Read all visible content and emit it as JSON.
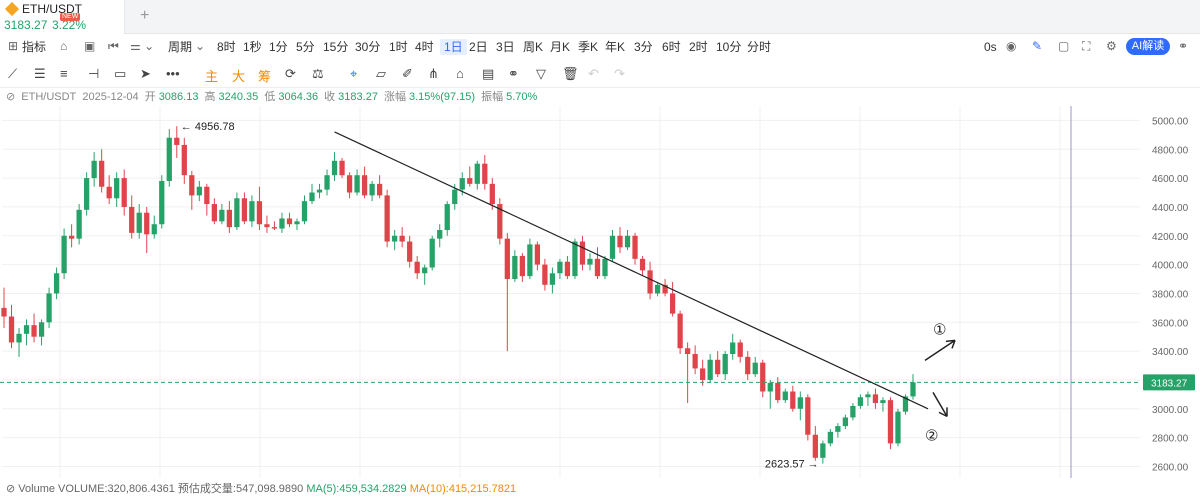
{
  "tab": {
    "symbol": "ETH/USDT",
    "price": "3183.27",
    "change": "3.22%",
    "badge": "NEW"
  },
  "toolbar": {
    "indicator_label": "指标",
    "period_label": "周期",
    "intervals": [
      "8时",
      "1秒",
      "1分",
      "5分",
      "15分",
      "30分",
      "1时",
      "4时",
      "1日",
      "2日",
      "3日",
      "周K",
      "月K",
      "季K",
      "年K",
      "3分",
      "6时",
      "2时",
      "10分",
      "分时"
    ],
    "active_interval": "1日",
    "replay_label": "0s",
    "ai_label": "AI解读"
  },
  "drawing_tools": {
    "main_label": "主",
    "big_label": "大",
    "chip_label": "筹"
  },
  "info": {
    "pair": "ETH/USDT",
    "date": "2025-12-04",
    "open_label": "开",
    "open": "3086.13",
    "high_label": "高",
    "high": "3240.35",
    "low_label": "低",
    "low": "3064.36",
    "close_label": "收",
    "close": "3183.27",
    "change_label": "涨幅",
    "change": "3.15%(97.15)",
    "amplitude_label": "振幅",
    "amplitude": "5.70%"
  },
  "volume": {
    "label": "Volume",
    "volume_text": "VOLUME:320,806.4361",
    "est_text": "预估成交量:547,098.9890",
    "ma5_text": "MA(5):459,534.2829",
    "ma10_text": "MA(10):415,215.7821"
  },
  "colors": {
    "up": "#26a269",
    "down": "#e0444b",
    "accent": "#2f6bff"
  },
  "chart_data": {
    "type": "candlestick",
    "y_ticks": [
      2600,
      2800,
      3000,
      3200,
      3400,
      3600,
      3800,
      4000,
      4200,
      4400,
      4600,
      4800,
      5000
    ],
    "ylim": [
      2520,
      5100
    ],
    "last_price_label": "3183.27",
    "high_annotation": "← 4956.78",
    "low_annotation": "2623.57 →",
    "scenario_labels": [
      "①",
      "②"
    ],
    "candles": [
      [
        3700,
        3840,
        3560,
        3640
      ],
      [
        3640,
        3720,
        3420,
        3460
      ],
      [
        3460,
        3560,
        3360,
        3520
      ],
      [
        3520,
        3620,
        3440,
        3580
      ],
      [
        3580,
        3660,
        3460,
        3500
      ],
      [
        3500,
        3620,
        3440,
        3600
      ],
      [
        3600,
        3840,
        3560,
        3800
      ],
      [
        3800,
        3980,
        3760,
        3940
      ],
      [
        3940,
        4250,
        3900,
        4200
      ],
      [
        4200,
        4280,
        4120,
        4180
      ],
      [
        4180,
        4420,
        4140,
        4380
      ],
      [
        4380,
        4640,
        4340,
        4600
      ],
      [
        4600,
        4780,
        4540,
        4720
      ],
      [
        4720,
        4800,
        4500,
        4540
      ],
      [
        4540,
        4620,
        4420,
        4460
      ],
      [
        4460,
        4640,
        4400,
        4600
      ],
      [
        4600,
        4660,
        4340,
        4400
      ],
      [
        4400,
        4480,
        4180,
        4220
      ],
      [
        4220,
        4420,
        4180,
        4360
      ],
      [
        4360,
        4400,
        4080,
        4210
      ],
      [
        4210,
        4340,
        4180,
        4280
      ],
      [
        4280,
        4620,
        4250,
        4580
      ],
      [
        4580,
        4940,
        4540,
        4880
      ],
      [
        4880,
        4960,
        4740,
        4830
      ],
      [
        4830,
        4880,
        4560,
        4620
      ],
      [
        4620,
        4650,
        4380,
        4480
      ],
      [
        4480,
        4580,
        4440,
        4540
      ],
      [
        4540,
        4560,
        4340,
        4420
      ],
      [
        4420,
        4460,
        4280,
        4300
      ],
      [
        4300,
        4420,
        4280,
        4380
      ],
      [
        4380,
        4440,
        4220,
        4260
      ],
      [
        4260,
        4500,
        4240,
        4460
      ],
      [
        4460,
        4500,
        4280,
        4300
      ],
      [
        4300,
        4480,
        4260,
        4440
      ],
      [
        4440,
        4540,
        4240,
        4280
      ],
      [
        4280,
        4340,
        4220,
        4260
      ],
      [
        4260,
        4300,
        4240,
        4250
      ],
      [
        4250,
        4360,
        4220,
        4320
      ],
      [
        4320,
        4360,
        4260,
        4280
      ],
      [
        4280,
        4320,
        4240,
        4300
      ],
      [
        4300,
        4480,
        4280,
        4440
      ],
      [
        4440,
        4560,
        4420,
        4500
      ],
      [
        4500,
        4560,
        4460,
        4520
      ],
      [
        4520,
        4660,
        4480,
        4620
      ],
      [
        4620,
        4780,
        4580,
        4720
      ],
      [
        4720,
        4740,
        4600,
        4620
      ],
      [
        4620,
        4640,
        4460,
        4500
      ],
      [
        4500,
        4660,
        4480,
        4620
      ],
      [
        4620,
        4680,
        4460,
        4480
      ],
      [
        4480,
        4580,
        4440,
        4560
      ],
      [
        4560,
        4620,
        4460,
        4480
      ],
      [
        4480,
        4520,
        4120,
        4160
      ],
      [
        4160,
        4240,
        4100,
        4200
      ],
      [
        4200,
        4260,
        4120,
        4160
      ],
      [
        4160,
        4200,
        3980,
        4020
      ],
      [
        4020,
        4060,
        3900,
        3940
      ],
      [
        3940,
        4000,
        3860,
        3980
      ],
      [
        3980,
        4200,
        3960,
        4180
      ],
      [
        4180,
        4280,
        4120,
        4240
      ],
      [
        4240,
        4440,
        4200,
        4420
      ],
      [
        4420,
        4560,
        4380,
        4520
      ],
      [
        4520,
        4640,
        4480,
        4600
      ],
      [
        4600,
        4680,
        4540,
        4560
      ],
      [
        4560,
        4720,
        4520,
        4700
      ],
      [
        4700,
        4760,
        4520,
        4560
      ],
      [
        4560,
        4600,
        4380,
        4420
      ],
      [
        4420,
        4460,
        4140,
        4180
      ],
      [
        4180,
        4220,
        3400,
        3900
      ],
      [
        3900,
        4100,
        3880,
        4060
      ],
      [
        4060,
        4080,
        3880,
        3920
      ],
      [
        3920,
        4180,
        3900,
        4140
      ],
      [
        4140,
        4160,
        3960,
        4000
      ],
      [
        4000,
        4040,
        3820,
        3860
      ],
      [
        3860,
        3980,
        3800,
        3940
      ],
      [
        3940,
        4040,
        3900,
        4020
      ],
      [
        4020,
        4060,
        3900,
        3920
      ],
      [
        3920,
        4180,
        3900,
        4160
      ],
      [
        4160,
        4200,
        3960,
        4000
      ],
      [
        4000,
        4080,
        3960,
        4040
      ],
      [
        4040,
        4120,
        3900,
        3920
      ],
      [
        3920,
        4060,
        3900,
        4040
      ],
      [
        4040,
        4240,
        4020,
        4200
      ],
      [
        4200,
        4260,
        4080,
        4120
      ],
      [
        4120,
        4240,
        4100,
        4200
      ],
      [
        4200,
        4220,
        4000,
        4040
      ],
      [
        4040,
        4060,
        3920,
        3960
      ],
      [
        3960,
        4020,
        3760,
        3800
      ],
      [
        3800,
        3880,
        3780,
        3860
      ],
      [
        3860,
        3900,
        3780,
        3800
      ],
      [
        3800,
        3880,
        3640,
        3660
      ],
      [
        3660,
        3680,
        3380,
        3420
      ],
      [
        3420,
        3460,
        3040,
        3380
      ],
      [
        3380,
        3440,
        3240,
        3280
      ],
      [
        3280,
        3340,
        3160,
        3200
      ],
      [
        3200,
        3380,
        3180,
        3340
      ],
      [
        3340,
        3400,
        3220,
        3240
      ],
      [
        3240,
        3400,
        3200,
        3380
      ],
      [
        3380,
        3520,
        3340,
        3460
      ],
      [
        3460,
        3480,
        3320,
        3360
      ],
      [
        3360,
        3400,
        3200,
        3240
      ],
      [
        3240,
        3360,
        3220,
        3320
      ],
      [
        3320,
        3340,
        3080,
        3120
      ],
      [
        3120,
        3200,
        3000,
        3180
      ],
      [
        3180,
        3220,
        3040,
        3060
      ],
      [
        3060,
        3140,
        3040,
        3120
      ],
      [
        3120,
        3160,
        2980,
        3000
      ],
      [
        3000,
        3120,
        2920,
        3080
      ],
      [
        3080,
        3100,
        2780,
        2820
      ],
      [
        2820,
        2880,
        2640,
        2660
      ],
      [
        2660,
        2780,
        2620,
        2760
      ],
      [
        2760,
        2860,
        2740,
        2840
      ],
      [
        2840,
        2900,
        2800,
        2880
      ],
      [
        2880,
        2960,
        2860,
        2940
      ],
      [
        2940,
        3040,
        2920,
        3020
      ],
      [
        3020,
        3100,
        3000,
        3080
      ],
      [
        3080,
        3120,
        3020,
        3100
      ],
      [
        3100,
        3140,
        3000,
        3040
      ],
      [
        3040,
        3080,
        2980,
        3060
      ],
      [
        3060,
        3080,
        2720,
        2760
      ],
      [
        2760,
        3000,
        2740,
        2980
      ],
      [
        2980,
        3100,
        2960,
        3086
      ],
      [
        3086,
        3240,
        3064,
        3183
      ]
    ],
    "trendline": [
      [
        44,
        4920
      ],
      [
        123,
        3000
      ]
    ]
  }
}
